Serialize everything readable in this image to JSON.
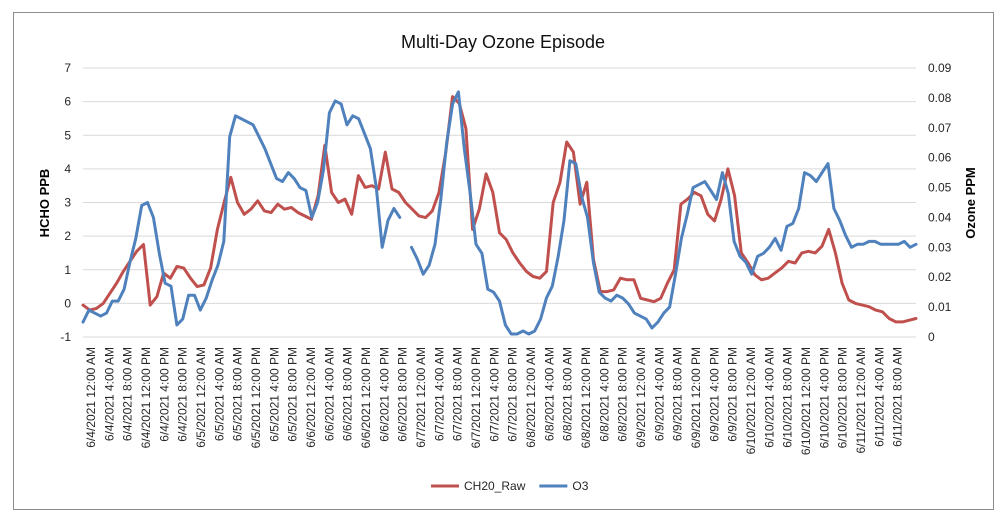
{
  "chart_data": {
    "type": "line",
    "title": "Multi-Day Ozone Episode",
    "ylabel_left": "HCHO PPB",
    "ylabel_right": "Ozone PPM",
    "ylim_left": [
      -1,
      7
    ],
    "ylim_right": [
      0,
      0.09
    ],
    "yticks_left": [
      "-1",
      "0",
      "1",
      "2",
      "3",
      "4",
      "5",
      "6",
      "7"
    ],
    "yticks_right": [
      "0",
      "0.01",
      "0.02",
      "0.03",
      "0.04",
      "0.05",
      "0.06",
      "0.07",
      "0.08",
      "0.09"
    ],
    "grid": true,
    "legend_position": "bottom",
    "x_labels": [
      "6/4/2021 12:00 AM",
      "6/4/2021 4:00 AM",
      "6/4/2021 8:00 AM",
      "6/4/2021 12:00 PM",
      "6/4/2021 4:00 PM",
      "6/4/2021 8:00 PM",
      "6/5/2021 12:00 AM",
      "6/5/2021 4:00 AM",
      "6/5/2021 8:00 AM",
      "6/5/2021 12:00 PM",
      "6/5/2021 4:00 PM",
      "6/5/2021 8:00 PM",
      "6/6/2021 12:00 AM",
      "6/6/2021 4:00 AM",
      "6/6/2021 8:00 AM",
      "6/6/2021 12:00 PM",
      "6/6/2021 4:00 PM",
      "6/6/2021 8:00 PM",
      "6/7/2021 12:00 AM",
      "6/7/2021 4:00 AM",
      "6/7/2021 8:00 AM",
      "6/7/2021 12:00 PM",
      "6/7/2021 4:00 PM",
      "6/7/2021 8:00 PM",
      "6/8/2021 12:00 AM",
      "6/8/2021 4:00 AM",
      "6/8/2021 8:00 AM",
      "6/8/2021 12:00 PM",
      "6/8/2021 4:00 PM",
      "6/8/2021 8:00 PM",
      "6/9/2021 12:00 AM",
      "6/9/2021 4:00 AM",
      "6/9/2021 8:00 AM",
      "6/9/2021 12:00 PM",
      "6/9/2021 4:00 PM",
      "6/9/2021 8:00 PM",
      "6/10/2021 12:00 AM",
      "6/10/2021 4:00 AM",
      "6/10/2021 8:00 AM",
      "6/10/2021 12:00 PM",
      "6/10/2021 4:00 PM",
      "6/10/2021 8:00 PM",
      "6/11/2021 12:00 AM",
      "6/11/2021 4:00 AM",
      "6/11/2021 8:00 AM"
    ],
    "series": [
      {
        "name": "CH20_Raw",
        "axis": "left",
        "color": "#c0504d",
        "values": [
          -0.05,
          -0.2,
          -0.15,
          0.0,
          0.3,
          0.6,
          0.95,
          1.25,
          1.55,
          1.75,
          -0.05,
          0.2,
          0.9,
          0.75,
          1.1,
          1.05,
          0.75,
          0.5,
          0.55,
          1.05,
          2.2,
          3.0,
          3.75,
          3.0,
          2.65,
          2.8,
          3.05,
          2.75,
          2.7,
          2.95,
          2.8,
          2.85,
          2.7,
          2.6,
          2.5,
          3.2,
          4.7,
          3.3,
          3.0,
          3.1,
          2.65,
          3.8,
          3.45,
          3.5,
          3.4,
          4.5,
          3.4,
          3.3,
          3.0,
          2.8,
          2.6,
          2.55,
          2.75,
          3.3,
          4.5,
          6.15,
          5.95,
          5.2,
          2.2,
          2.8,
          3.85,
          3.3,
          2.1,
          1.9,
          1.5,
          1.2,
          0.95,
          0.8,
          0.75,
          0.95,
          3.0,
          3.6,
          4.8,
          4.5,
          2.95,
          3.6,
          1.3,
          0.35,
          0.35,
          0.4,
          0.75,
          0.7,
          0.7,
          0.15,
          0.1,
          0.05,
          0.15,
          0.6,
          1.0,
          2.95,
          3.1,
          3.3,
          3.2,
          2.65,
          2.45,
          3.1,
          4.0,
          3.2,
          1.5,
          1.2,
          0.85,
          0.7,
          0.75,
          0.9,
          1.05,
          1.25,
          1.2,
          1.5,
          1.55,
          1.5,
          1.7,
          2.2,
          1.5,
          0.6,
          0.1,
          0.0,
          -0.05,
          -0.1,
          -0.2,
          -0.25,
          -0.45,
          -0.55,
          -0.55,
          -0.5,
          -0.45
        ]
      },
      {
        "name": "O3",
        "axis": "right",
        "color": "#4f81bd",
        "values": [
          0.005,
          0.009,
          0.008,
          0.007,
          0.008,
          0.012,
          0.012,
          0.016,
          0.025,
          0.033,
          0.044,
          0.045,
          0.04,
          0.028,
          0.018,
          0.017,
          0.004,
          0.006,
          0.014,
          0.014,
          0.009,
          0.013,
          0.019,
          0.024,
          0.032,
          0.067,
          0.074,
          0.073,
          0.072,
          0.071,
          0.067,
          0.063,
          0.058,
          0.053,
          0.052,
          0.055,
          0.053,
          0.05,
          0.049,
          0.04,
          0.045,
          0.056,
          0.075,
          0.079,
          0.078,
          0.071,
          0.074,
          0.073,
          0.068,
          0.063,
          0.05,
          0.03,
          0.039,
          0.043,
          0.04,
          null,
          0.03,
          0.026,
          0.021,
          0.024,
          0.031,
          0.046,
          0.065,
          0.078,
          0.082,
          0.063,
          0.048,
          0.031,
          0.028,
          0.016,
          0.015,
          0.012,
          0.004,
          0.001,
          0.001,
          0.002,
          0.001,
          0.002,
          0.006,
          0.013,
          0.017,
          0.027,
          0.039,
          0.059,
          0.058,
          0.047,
          0.04,
          0.025,
          0.015,
          0.013,
          0.012,
          0.014,
          0.013,
          0.011,
          0.008,
          0.007,
          0.006,
          0.003,
          0.005,
          0.008,
          0.01,
          0.021,
          0.033,
          0.041,
          0.05,
          0.051,
          0.052,
          0.049,
          0.046,
          0.055,
          0.048,
          0.032,
          0.027,
          0.025,
          0.021,
          0.027,
          0.028,
          0.03,
          0.033,
          0.029,
          0.037,
          0.038,
          0.043,
          0.055,
          0.054,
          0.052,
          0.055,
          0.058,
          0.043,
          0.039,
          0.034,
          0.03,
          0.031,
          0.031,
          0.032,
          0.032,
          0.031,
          0.031,
          0.031,
          0.031,
          0.032,
          0.03,
          0.031
        ]
      }
    ]
  }
}
